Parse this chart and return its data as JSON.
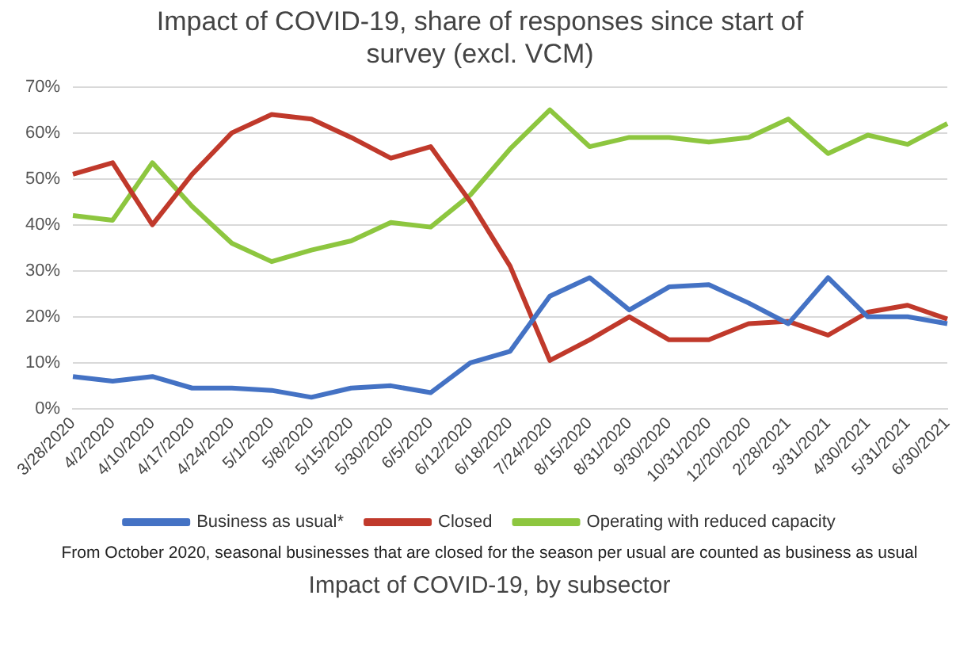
{
  "chart_data": {
    "type": "line",
    "title": "Impact of COVID-19, share of responses since start of survey (excl. VCM)",
    "categories": [
      "3/28/2020",
      "4/2/2020",
      "4/10/2020",
      "4/17/2020",
      "4/24/2020",
      "5/1/2020",
      "5/8/2020",
      "5/15/2020",
      "5/30/2020",
      "6/5/2020",
      "6/12/2020",
      "6/18/2020",
      "7/24/2020",
      "8/15/2020",
      "8/31/2020",
      "9/30/2020",
      "10/31/2020",
      "12/20/2020",
      "2/28/2021",
      "3/31/2021",
      "4/30/2021",
      "5/31/2021",
      "6/30/2021"
    ],
    "series": [
      {
        "name": "Business as usual*",
        "color": "#4472c4",
        "values": [
          7,
          6,
          7,
          4.5,
          4.5,
          4,
          2.5,
          4.5,
          5,
          3.5,
          10,
          12.5,
          24.5,
          28.5,
          21.5,
          26.5,
          27,
          23,
          18.5,
          28.5,
          20,
          20,
          18.5
        ]
      },
      {
        "name": "Closed",
        "color": "#c0392b",
        "values": [
          51,
          53.5,
          40,
          51,
          60,
          64,
          63,
          59,
          54.5,
          57,
          45,
          31,
          10.5,
          15,
          20,
          15,
          15,
          18.5,
          19,
          16,
          21,
          22.5,
          19.5
        ]
      },
      {
        "name": "Operating with reduced capacity",
        "color": "#8dc63f",
        "values": [
          42,
          41,
          53.5,
          44,
          36,
          32,
          34.5,
          36.5,
          40.5,
          39.5,
          46.5,
          56.5,
          65,
          57,
          59,
          59,
          58,
          59,
          63,
          55.5,
          59.5,
          57.5,
          62
        ]
      }
    ],
    "ylim": [
      0,
      70
    ],
    "yticks": [
      {
        "value": 0,
        "label": "0%"
      },
      {
        "value": 10,
        "label": "10%"
      },
      {
        "value": 20,
        "label": "20%"
      },
      {
        "value": 30,
        "label": "30%"
      },
      {
        "value": 40,
        "label": "40%"
      },
      {
        "value": 50,
        "label": "50%"
      },
      {
        "value": 60,
        "label": "60%"
      },
      {
        "value": 70,
        "label": "70%"
      }
    ],
    "grid": "y",
    "legend": "bottom",
    "marker": "none",
    "line_style": "solid",
    "annotations": [
      "From October 2020, seasonal businesses that are closed for the season per usual are counted as business as usual",
      "Impact of COVID-19, by subsector"
    ]
  }
}
